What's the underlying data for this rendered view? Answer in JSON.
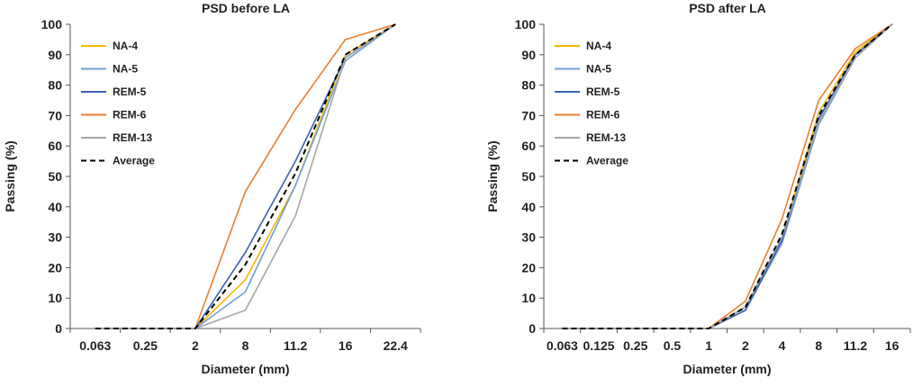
{
  "chart_data": [
    {
      "type": "line",
      "title": "PSD before LA",
      "xlabel": "Diameter (mm)",
      "ylabel": "Passing (%)",
      "categories": [
        "0.063",
        "0.25",
        "2",
        "8",
        "11.2",
        "16",
        "22.4"
      ],
      "x_ticks": [
        "0.063",
        "0.25",
        "2",
        "8",
        "11.2",
        "16",
        "22.4"
      ],
      "ylim": [
        0,
        100
      ],
      "y_ticks": [
        "0",
        "10",
        "20",
        "30",
        "40",
        "50",
        "60",
        "70",
        "80",
        "90",
        "100"
      ],
      "legend_position": "top-left",
      "grid": false,
      "series": [
        {
          "name": "NA-4",
          "color": "#F5B800",
          "dash": false,
          "values": [
            0,
            0,
            0,
            16,
            47,
            90,
            100
          ]
        },
        {
          "name": "NA-5",
          "color": "#6FA0D8",
          "dash": false,
          "values": [
            0,
            0,
            0,
            12,
            47,
            88,
            100
          ]
        },
        {
          "name": "REM-5",
          "color": "#3A62B4",
          "dash": false,
          "values": [
            0,
            0,
            0,
            25,
            55,
            89,
            100
          ]
        },
        {
          "name": "REM-6",
          "color": "#ED7D31",
          "dash": false,
          "values": [
            0,
            0,
            0,
            45,
            72,
            95,
            100
          ]
        },
        {
          "name": "REM-13",
          "color": "#A5A5A5",
          "dash": false,
          "values": [
            0,
            0,
            0,
            6,
            37,
            89,
            100
          ]
        },
        {
          "name": "Average",
          "color": "#000000",
          "dash": true,
          "values": [
            0,
            0,
            0,
            21,
            51,
            90,
            100
          ]
        }
      ]
    },
    {
      "type": "line",
      "title": "PSD after LA",
      "xlabel": "Diameter (mm)",
      "ylabel": "Passing (%)",
      "categories": [
        "0.063",
        "0.125",
        "0.25",
        "0.5",
        "1",
        "2",
        "4",
        "8",
        "11.2",
        "16"
      ],
      "x_ticks": [
        "0.063",
        "0.125",
        "0.25",
        "0.5",
        "1",
        "2",
        "4",
        "8",
        "11.2",
        "16"
      ],
      "ylim": [
        0,
        100
      ],
      "y_ticks": [
        "0",
        "10",
        "20",
        "30",
        "40",
        "50",
        "60",
        "70",
        "80",
        "90",
        "100"
      ],
      "legend_position": "top-left",
      "grid": false,
      "series": [
        {
          "name": "NA-4",
          "color": "#F5B800",
          "dash": false,
          "values": [
            0,
            0,
            0,
            0,
            0,
            7,
            30,
            71,
            91,
            100
          ]
        },
        {
          "name": "NA-5",
          "color": "#6FA0D8",
          "dash": false,
          "values": [
            0,
            0,
            0,
            0,
            0,
            6,
            28,
            67,
            89,
            100
          ]
        },
        {
          "name": "REM-5",
          "color": "#3A62B4",
          "dash": false,
          "values": [
            0,
            0,
            0,
            0,
            0,
            6,
            29,
            69,
            90,
            100
          ]
        },
        {
          "name": "REM-6",
          "color": "#ED7D31",
          "dash": false,
          "values": [
            0,
            0,
            0,
            0,
            0,
            9,
            36,
            75,
            92,
            100
          ]
        },
        {
          "name": "REM-13",
          "color": "#A5A5A5",
          "dash": false,
          "values": [
            0,
            0,
            0,
            0,
            0,
            7,
            30,
            68,
            89,
            100
          ]
        },
        {
          "name": "Average",
          "color": "#000000",
          "dash": true,
          "values": [
            0,
            0,
            0,
            0,
            0,
            7,
            31,
            70,
            90,
            100
          ]
        }
      ]
    }
  ]
}
